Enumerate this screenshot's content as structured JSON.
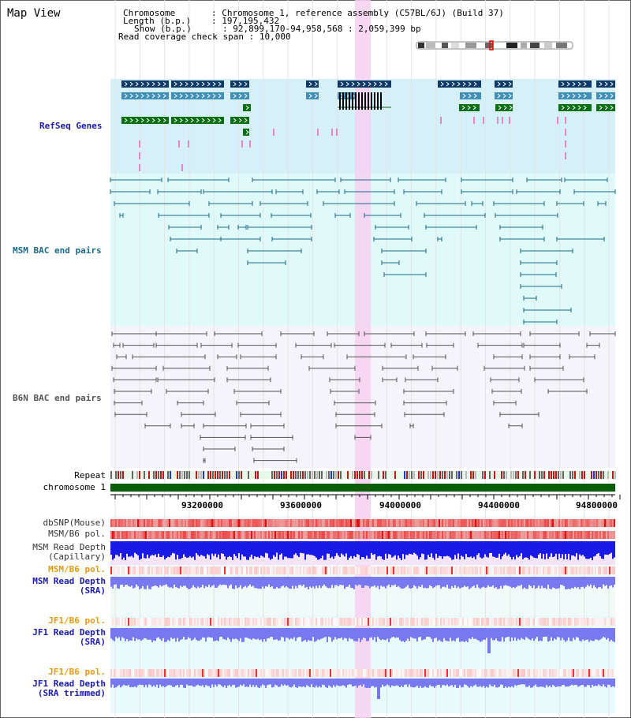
{
  "view_title": "Map View",
  "header": {
    "chromosome_key": "Chromosome",
    "chromosome_val": "Chromosome 1, reference assembly (C57BL/6J) (Build 37)",
    "length_key": "Length (b.p.)",
    "length_val": "197,195,432",
    "show_key": "Show (b.p.)",
    "show_val": "92,899,170-94,958,568 : 2,059,399 bp",
    "coverage_key": "Read coverage check span",
    "coverage_val": "10,000"
  },
  "tracks": {
    "refseq": "RefSeq Genes",
    "msm_bac": "MSM BAC end pairs",
    "b6n_bac": "B6N BAC end pairs",
    "repeat": "Repeat",
    "chromosome": "chromosome 1",
    "dbsnp": "dbSNP(Mouse)",
    "msm_pol1": "MSM/B6 pol.",
    "msm_depth_cap_1": "MSM Read Depth",
    "msm_depth_cap_2": "(Capillary)",
    "msm_pol2": "MSM/B6 pol.",
    "msm_depth_sra_1": "MSM Read Depth",
    "msm_depth_sra_2": "(SRA)",
    "jf1_pol1": "JF1/B6 pol.",
    "jf1_depth_1": "JF1 Read Depth",
    "jf1_depth_2": "(SRA)",
    "jf1_pol2": "JF1/B6 pol.",
    "jf1_trim_1": "JF1 Read Depth",
    "jf1_trim_2": "(SRA trimmed)"
  },
  "axis": {
    "ticks": [
      "93200000",
      "93600000",
      "94000000",
      "94400000",
      "94800000"
    ]
  },
  "colors": {
    "refseq_bg": "#d6f0fa",
    "msm_bg": "#e0fafa",
    "b6n_bg": "#f4f4fa",
    "highlight": "#f7d0f0",
    "gene_dark": "#0e3a6b",
    "gene_mid": "#3f8fb8",
    "gene_green": "#0a6e12",
    "bac_msm": "#1a6a8a",
    "bac_b6n": "#555555",
    "chrom": "#0a5e0a",
    "depth_blue": "#1a1ae6",
    "depth_lavender": "#7878f0"
  }
}
